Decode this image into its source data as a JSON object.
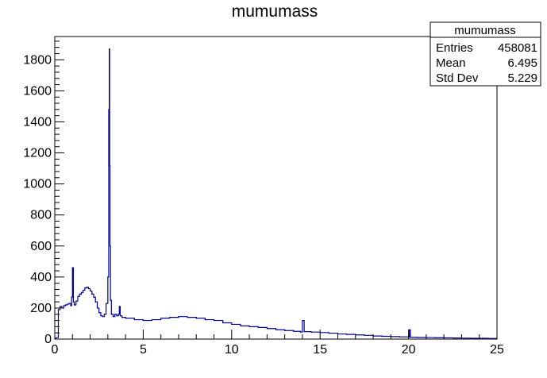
{
  "chart_data": {
    "type": "histogram",
    "title": "mumumass",
    "xlabel": "",
    "ylabel": "",
    "xlim": [
      0,
      25
    ],
    "ylim": [
      0,
      1950
    ],
    "x_ticks": [
      0,
      5,
      10,
      15,
      20,
      25
    ],
    "y_ticks": [
      0,
      200,
      400,
      600,
      800,
      1000,
      1200,
      1400,
      1600,
      1800
    ],
    "grid": false,
    "line_color": "#000099",
    "stats_box": {
      "name": "mumumass",
      "rows": [
        {
          "label": "Entries",
          "value": "458081"
        },
        {
          "label": "Mean",
          "value": "6.495"
        },
        {
          "label": "Std Dev",
          "value": "5.229"
        }
      ]
    },
    "series": [
      {
        "x": [
          0.1,
          0.2,
          0.3,
          0.4,
          0.5,
          0.6,
          0.7,
          0.8,
          0.9,
          0.95,
          1.0,
          1.05,
          1.1,
          1.2,
          1.3,
          1.4,
          1.5,
          1.6,
          1.7,
          1.8,
          1.9,
          2.0,
          2.1,
          2.2,
          2.3,
          2.4,
          2.5,
          2.6,
          2.7,
          2.8,
          2.9,
          3.0,
          3.05,
          3.08,
          3.1,
          3.12,
          3.15,
          3.2,
          3.3,
          3.4,
          3.5,
          3.6,
          3.65,
          3.7,
          3.8,
          4.0,
          4.5,
          5.0,
          5.5,
          6.0,
          6.5,
          7.0,
          7.5,
          8.0,
          8.5,
          9.0,
          9.5,
          10.0,
          10.5,
          11.0,
          11.5,
          12.0,
          12.5,
          13.0,
          13.5,
          13.9,
          14.0,
          14.1,
          14.5,
          15.0,
          15.5,
          16.0,
          16.5,
          17.0,
          17.5,
          18.0,
          18.5,
          19.0,
          19.5,
          20.0,
          20.05,
          20.1,
          20.5,
          21.0,
          21.5,
          22.0,
          22.5,
          23.0,
          23.5,
          24.0,
          24.5,
          25.0
        ],
        "values": [
          10,
          190,
          210,
          200,
          215,
          220,
          225,
          230,
          215,
          270,
          460,
          240,
          220,
          245,
          275,
          290,
          300,
          315,
          330,
          335,
          325,
          310,
          290,
          270,
          240,
          200,
          170,
          150,
          145,
          160,
          230,
          400,
          1480,
          1870,
          1120,
          600,
          250,
          160,
          145,
          160,
          150,
          160,
          210,
          150,
          140,
          135,
          125,
          120,
          125,
          135,
          140,
          145,
          140,
          135,
          125,
          120,
          105,
          95,
          85,
          80,
          75,
          68,
          60,
          55,
          50,
          45,
          120,
          48,
          45,
          42,
          38,
          33,
          30,
          27,
          24,
          20,
          18,
          16,
          14,
          12,
          60,
          12,
          11,
          10,
          9,
          8,
          7,
          6,
          5,
          5,
          4,
          4
        ]
      }
    ]
  }
}
